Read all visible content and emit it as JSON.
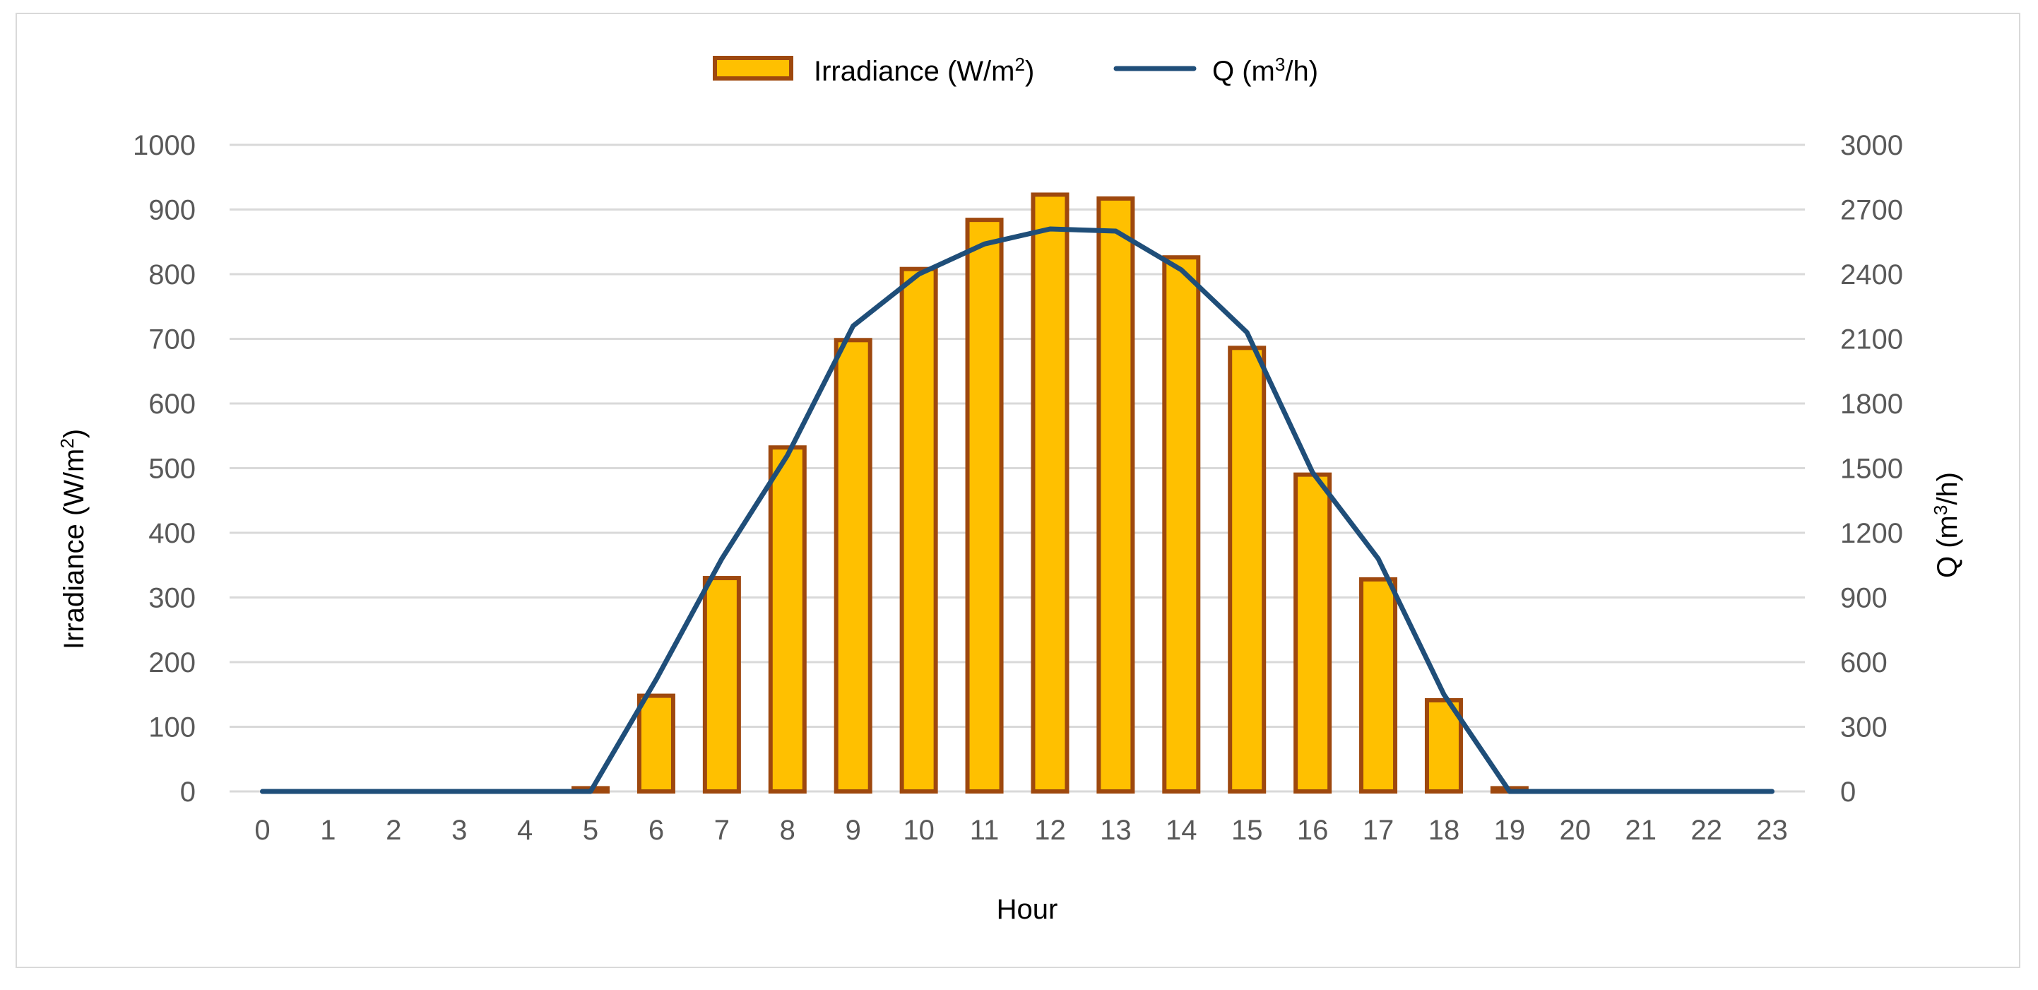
{
  "chart_data": {
    "type": "bar+line",
    "title": "",
    "categories": [
      "0",
      "1",
      "2",
      "3",
      "4",
      "5",
      "6",
      "7",
      "8",
      "9",
      "10",
      "11",
      "12",
      "13",
      "14",
      "15",
      "16",
      "17",
      "18",
      "19",
      "20",
      "21",
      "22",
      "23"
    ],
    "series": [
      {
        "name": "Irradiance (W/m2)",
        "kind": "bar",
        "axis": "left",
        "legend_label": {
          "base": "Irradiance (W/m",
          "sup": "2",
          "tail": ")"
        },
        "values": [
          0,
          0,
          0,
          0,
          0,
          5,
          148,
          330,
          532,
          698,
          808,
          884,
          923,
          917,
          826,
          686,
          490,
          328,
          141,
          5,
          0,
          0,
          0,
          0
        ]
      },
      {
        "name": "Q (m3/h)",
        "kind": "line",
        "axis": "right",
        "legend_label": {
          "base": "Q (m",
          "sup": "3",
          "tail": "/h)"
        },
        "values": [
          0,
          0,
          0,
          0,
          0,
          0,
          520,
          1080,
          1560,
          2160,
          2400,
          2540,
          2610,
          2600,
          2420,
          2130,
          1480,
          1080,
          450,
          0,
          0,
          0,
          0,
          0
        ]
      }
    ],
    "xlabel": "Hour",
    "ylabel": {
      "base": "Irradiance (W/m",
      "sup": "2",
      "tail": ")"
    },
    "y2label": {
      "base": "Q (m",
      "sup": "3",
      "tail": "/h)"
    },
    "ylim": [
      0,
      1000
    ],
    "y2lim": [
      0,
      3000
    ],
    "yticks": [
      0,
      100,
      200,
      300,
      400,
      500,
      600,
      700,
      800,
      900,
      1000
    ],
    "y2ticks": [
      0,
      300,
      600,
      900,
      1200,
      1500,
      1800,
      2100,
      2400,
      2700,
      3000
    ],
    "grid": true,
    "legend_position": "top-center",
    "colors": {
      "bar_fill": "#ffc000",
      "bar_border": "#9e480e",
      "line": "#1f4e79",
      "grid": "#d9d9d9",
      "frame": "#d9d9d9"
    }
  }
}
